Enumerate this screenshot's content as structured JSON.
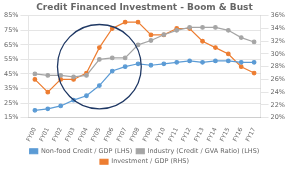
{
  "chart_data": {
    "type": "line",
    "title": "Credit Financed Investment - Boom & Bust",
    "categories": [
      "FY00",
      "FY01",
      "FY02",
      "FY03",
      "FY04",
      "FY05",
      "FY06",
      "FY07",
      "FY08",
      "FY09",
      "FY10",
      "FY11",
      "FY12",
      "FY13",
      "FY14",
      "FY15",
      "FY16",
      "FY17"
    ],
    "series": [
      {
        "name": "Non-food Credit / GDP (LHS)",
        "color": "#5B9BD5",
        "marker": "circle",
        "values": [
          20,
          21,
          23,
          27,
          30,
          37,
          47,
          50,
          52,
          51,
          52,
          53,
          54,
          53,
          54,
          54,
          53,
          53
        ]
      },
      {
        "name": "Industry (Credit / GVA Ratio) (LHS)",
        "color": "#A5A5A5",
        "marker": "circle",
        "values": [
          45,
          44,
          44,
          43,
          44,
          55,
          56,
          56,
          65,
          68,
          72,
          75,
          77,
          77,
          77,
          75,
          70,
          67
        ]
      },
      {
        "name": "Investment / GDP (RHS)",
        "color": "#ED7D31",
        "marker": "circle",
        "axis": "y2",
        "values": [
          26,
          24,
          26,
          26,
          27,
          31,
          34,
          35,
          35,
          33,
          33,
          34,
          34,
          32,
          31,
          30,
          28,
          27
        ]
      }
    ],
    "ylim": [
      15,
      85
    ],
    "yticks": [
      {
        "value": 15,
        "label": "15%"
      },
      {
        "value": 25,
        "label": "25%"
      },
      {
        "value": 35,
        "label": "35%"
      },
      {
        "value": 45,
        "label": "45%"
      },
      {
        "value": 55,
        "label": "55%"
      },
      {
        "value": 65,
        "label": "65%"
      },
      {
        "value": 75,
        "label": "75%"
      },
      {
        "value": 85,
        "label": "85%"
      }
    ],
    "y2lim": [
      20,
      36
    ],
    "y2ticks": [
      {
        "value": 20,
        "label": "20%"
      },
      {
        "value": 22,
        "label": "22%"
      },
      {
        "value": 24,
        "label": "24%"
      },
      {
        "value": 26,
        "label": "26%"
      },
      {
        "value": 28,
        "label": "28%"
      },
      {
        "value": 30,
        "label": "30%"
      },
      {
        "value": 32,
        "label": "32%"
      },
      {
        "value": 34,
        "label": "34%"
      },
      {
        "value": 36,
        "label": "36%"
      }
    ],
    "grid": true,
    "legend": "bottom",
    "annotations": [
      {
        "shape": "ellipse",
        "x": "FY05",
        "y": 50,
        "width": 6.5,
        "height": 58,
        "color": "#1F3864"
      }
    ]
  }
}
